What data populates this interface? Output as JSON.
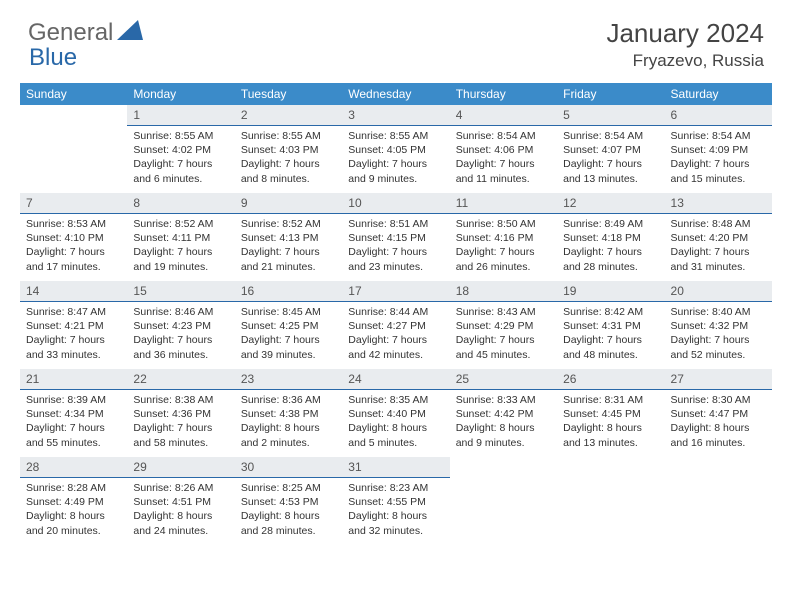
{
  "logo": {
    "text1": "General",
    "text2": "Blue",
    "shape_color": "#2968a8"
  },
  "header": {
    "title": "January 2024",
    "location": "Fryazevo, Russia"
  },
  "colors": {
    "header_bg": "#3b8bc9",
    "header_text": "#ffffff",
    "daynum_bg": "#e9ecef",
    "daynum_border": "#2968a8",
    "text": "#333333",
    "title_text": "#444444"
  },
  "day_headers": [
    "Sunday",
    "Monday",
    "Tuesday",
    "Wednesday",
    "Thursday",
    "Friday",
    "Saturday"
  ],
  "start_offset": 1,
  "days": [
    {
      "n": "1",
      "sr": "8:55 AM",
      "ss": "4:02 PM",
      "dl": "7 hours and 6 minutes."
    },
    {
      "n": "2",
      "sr": "8:55 AM",
      "ss": "4:03 PM",
      "dl": "7 hours and 8 minutes."
    },
    {
      "n": "3",
      "sr": "8:55 AM",
      "ss": "4:05 PM",
      "dl": "7 hours and 9 minutes."
    },
    {
      "n": "4",
      "sr": "8:54 AM",
      "ss": "4:06 PM",
      "dl": "7 hours and 11 minutes."
    },
    {
      "n": "5",
      "sr": "8:54 AM",
      "ss": "4:07 PM",
      "dl": "7 hours and 13 minutes."
    },
    {
      "n": "6",
      "sr": "8:54 AM",
      "ss": "4:09 PM",
      "dl": "7 hours and 15 minutes."
    },
    {
      "n": "7",
      "sr": "8:53 AM",
      "ss": "4:10 PM",
      "dl": "7 hours and 17 minutes."
    },
    {
      "n": "8",
      "sr": "8:52 AM",
      "ss": "4:11 PM",
      "dl": "7 hours and 19 minutes."
    },
    {
      "n": "9",
      "sr": "8:52 AM",
      "ss": "4:13 PM",
      "dl": "7 hours and 21 minutes."
    },
    {
      "n": "10",
      "sr": "8:51 AM",
      "ss": "4:15 PM",
      "dl": "7 hours and 23 minutes."
    },
    {
      "n": "11",
      "sr": "8:50 AM",
      "ss": "4:16 PM",
      "dl": "7 hours and 26 minutes."
    },
    {
      "n": "12",
      "sr": "8:49 AM",
      "ss": "4:18 PM",
      "dl": "7 hours and 28 minutes."
    },
    {
      "n": "13",
      "sr": "8:48 AM",
      "ss": "4:20 PM",
      "dl": "7 hours and 31 minutes."
    },
    {
      "n": "14",
      "sr": "8:47 AM",
      "ss": "4:21 PM",
      "dl": "7 hours and 33 minutes."
    },
    {
      "n": "15",
      "sr": "8:46 AM",
      "ss": "4:23 PM",
      "dl": "7 hours and 36 minutes."
    },
    {
      "n": "16",
      "sr": "8:45 AM",
      "ss": "4:25 PM",
      "dl": "7 hours and 39 minutes."
    },
    {
      "n": "17",
      "sr": "8:44 AM",
      "ss": "4:27 PM",
      "dl": "7 hours and 42 minutes."
    },
    {
      "n": "18",
      "sr": "8:43 AM",
      "ss": "4:29 PM",
      "dl": "7 hours and 45 minutes."
    },
    {
      "n": "19",
      "sr": "8:42 AM",
      "ss": "4:31 PM",
      "dl": "7 hours and 48 minutes."
    },
    {
      "n": "20",
      "sr": "8:40 AM",
      "ss": "4:32 PM",
      "dl": "7 hours and 52 minutes."
    },
    {
      "n": "21",
      "sr": "8:39 AM",
      "ss": "4:34 PM",
      "dl": "7 hours and 55 minutes."
    },
    {
      "n": "22",
      "sr": "8:38 AM",
      "ss": "4:36 PM",
      "dl": "7 hours and 58 minutes."
    },
    {
      "n": "23",
      "sr": "8:36 AM",
      "ss": "4:38 PM",
      "dl": "8 hours and 2 minutes."
    },
    {
      "n": "24",
      "sr": "8:35 AM",
      "ss": "4:40 PM",
      "dl": "8 hours and 5 minutes."
    },
    {
      "n": "25",
      "sr": "8:33 AM",
      "ss": "4:42 PM",
      "dl": "8 hours and 9 minutes."
    },
    {
      "n": "26",
      "sr": "8:31 AM",
      "ss": "4:45 PM",
      "dl": "8 hours and 13 minutes."
    },
    {
      "n": "27",
      "sr": "8:30 AM",
      "ss": "4:47 PM",
      "dl": "8 hours and 16 minutes."
    },
    {
      "n": "28",
      "sr": "8:28 AM",
      "ss": "4:49 PM",
      "dl": "8 hours and 20 minutes."
    },
    {
      "n": "29",
      "sr": "8:26 AM",
      "ss": "4:51 PM",
      "dl": "8 hours and 24 minutes."
    },
    {
      "n": "30",
      "sr": "8:25 AM",
      "ss": "4:53 PM",
      "dl": "8 hours and 28 minutes."
    },
    {
      "n": "31",
      "sr": "8:23 AM",
      "ss": "4:55 PM",
      "dl": "8 hours and 32 minutes."
    }
  ],
  "labels": {
    "sunrise": "Sunrise:",
    "sunset": "Sunset:",
    "daylight": "Daylight:"
  }
}
